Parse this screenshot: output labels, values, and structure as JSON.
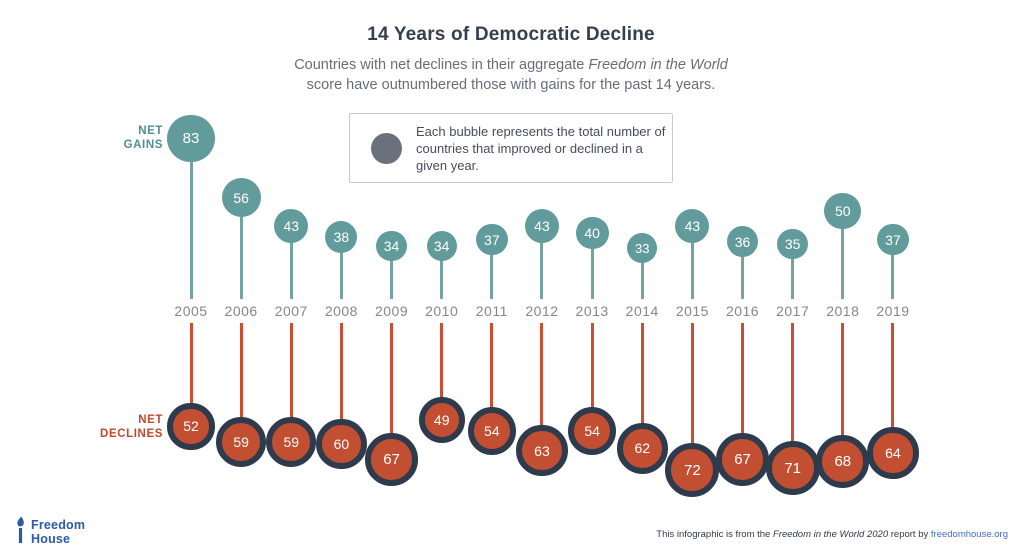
{
  "header": {
    "title": "14 Years of Democratic Decline",
    "subtitle_prefix": "Countries with net declines in their aggregate ",
    "subtitle_italic": "Freedom in the World",
    "subtitle_line2": "score have outnumbered those with gains for the past 14 years."
  },
  "legend": {
    "text": "Each bubble represents the total number of countries that improved or declined in a given year."
  },
  "labels": {
    "gains_line1": "NET",
    "gains_line2": "GAINS",
    "declines_line1": "NET",
    "declines_line2": "DECLINES"
  },
  "chart_data": {
    "type": "bubble",
    "title": "14 Years of Democratic Decline",
    "categories": [
      "2005",
      "2006",
      "2007",
      "2008",
      "2009",
      "2010",
      "2011",
      "2012",
      "2013",
      "2014",
      "2015",
      "2016",
      "2017",
      "2018",
      "2019"
    ],
    "series": [
      {
        "name": "Net Gains",
        "color": "#629b9b",
        "stem_color": "#74a3a3",
        "direction": "up",
        "values": [
          83,
          56,
          43,
          38,
          34,
          34,
          37,
          43,
          40,
          33,
          43,
          36,
          35,
          50,
          37
        ]
      },
      {
        "name": "Net Declines",
        "color": "#c24f31",
        "stem_color": "#cb4e31",
        "ring_color": "#2e3b4d",
        "direction": "down",
        "values": [
          52,
          59,
          59,
          60,
          67,
          49,
          54,
          63,
          54,
          62,
          72,
          67,
          71,
          68,
          64
        ]
      }
    ],
    "bubble_size_encodes": "total number of countries that improved or declined in a given year",
    "legend_position": "top-center",
    "grid": false
  },
  "footer": {
    "logo_line1": "Freedom",
    "logo_line2": "House",
    "attribution_prefix": "This infographic is from the ",
    "attribution_italic": "Freedom in the World 2020",
    "attribution_middle": " report by ",
    "attribution_link": "freedomhouse.org"
  },
  "colors": {
    "gain_teal": "#629b9b",
    "decline_red": "#c24f31",
    "ring_navy": "#2e3b4d",
    "title_navy": "#35404f",
    "year_gray": "#85868f",
    "legend_circle_gray": "#6a707c",
    "logo_blue": "#2b5aa7",
    "link_blue": "#3f6fbf"
  }
}
